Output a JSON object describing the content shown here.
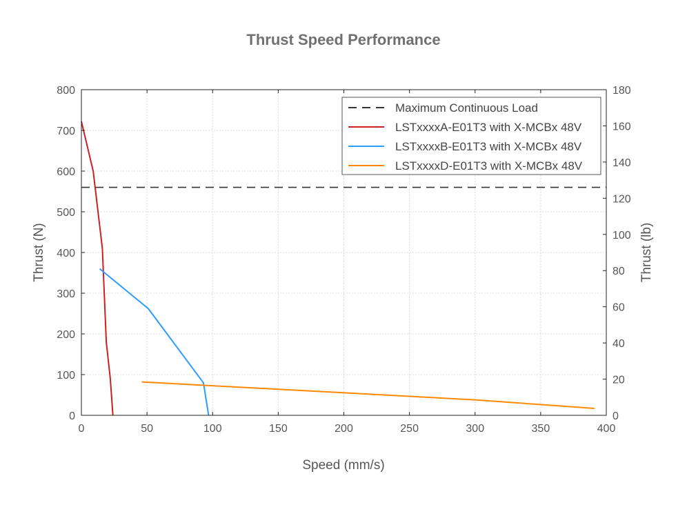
{
  "chart_data": {
    "type": "line",
    "title": "Thrust Speed Performance",
    "xlabel": "Speed (mm/s)",
    "ylabel": "Thrust (N)",
    "y2label": "Thrust (lb)",
    "xlim": [
      0,
      400
    ],
    "ylim": [
      0,
      800
    ],
    "y2lim": [
      0,
      180
    ],
    "xticks": [
      "0",
      "50",
      "100",
      "150",
      "200",
      "250",
      "300",
      "350",
      "400"
    ],
    "yticks": [
      "0",
      "100",
      "200",
      "300",
      "400",
      "500",
      "600",
      "700",
      "800"
    ],
    "y2ticks": [
      "0",
      "20",
      "40",
      "60",
      "80",
      "100",
      "120",
      "140",
      "160",
      "180"
    ],
    "grid": true,
    "legend_position": "top-right",
    "reference_line": {
      "name": "Maximum Continuous Load",
      "y": 560,
      "color": "#333333",
      "style": "dashed"
    },
    "series": [
      {
        "name": "LSTxxxxA-E01T3 with X-MCBx 48V",
        "color": "#cc1f1f",
        "points": [
          [
            0,
            722
          ],
          [
            9,
            600
          ],
          [
            16,
            410
          ],
          [
            19,
            180
          ],
          [
            22,
            90
          ],
          [
            24,
            0
          ]
        ]
      },
      {
        "name": "LSTxxxxB-E01T3 with X-MCBx 48V",
        "color": "#2b9cff",
        "points": [
          [
            14,
            360
          ],
          [
            51,
            262
          ],
          [
            93,
            80
          ],
          [
            97,
            0
          ]
        ]
      },
      {
        "name": "LSTxxxxD-E01T3 with X-MCBx 48V",
        "color": "#ff8800",
        "points": [
          [
            46,
            82
          ],
          [
            300,
            38
          ],
          [
            391,
            17
          ]
        ]
      }
    ]
  }
}
